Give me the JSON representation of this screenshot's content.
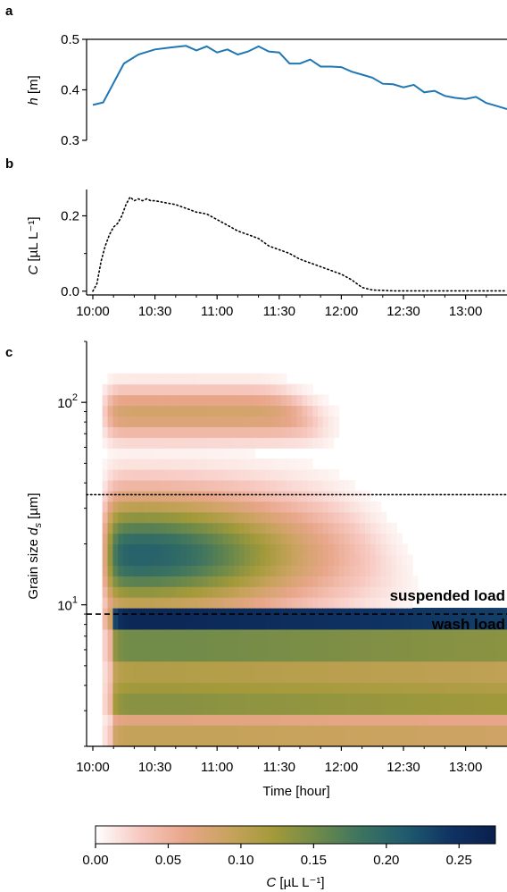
{
  "panel_letters": [
    "a",
    "b",
    "c"
  ],
  "chart_data": [
    {
      "panel": "a",
      "type": "line",
      "ylabel_italic": "h",
      "ylabel_unit": " [m]",
      "ylim": [
        0.3,
        0.5
      ],
      "yticks": [
        "0.3",
        "0.4",
        "0.5"
      ],
      "xlim": [
        0,
        200
      ],
      "x_unit": "minutes after 10:00",
      "color": "#1f77b4",
      "x": [
        0,
        5,
        15,
        22,
        30,
        38,
        45,
        50,
        55,
        60,
        65,
        70,
        75,
        80,
        85,
        90,
        95,
        100,
        105,
        110,
        115,
        120,
        125,
        130,
        135,
        140,
        145,
        150,
        155,
        160,
        165,
        170,
        175,
        180,
        185,
        190,
        195,
        200
      ],
      "y": [
        0.37,
        0.375,
        0.452,
        0.47,
        0.48,
        0.484,
        0.487,
        0.478,
        0.486,
        0.474,
        0.48,
        0.47,
        0.476,
        0.486,
        0.476,
        0.474,
        0.452,
        0.452,
        0.46,
        0.446,
        0.446,
        0.445,
        0.436,
        0.43,
        0.424,
        0.412,
        0.411,
        0.405,
        0.41,
        0.395,
        0.398,
        0.388,
        0.384,
        0.382,
        0.386,
        0.374,
        0.368,
        0.362
      ]
    },
    {
      "panel": "b",
      "type": "line",
      "ylabel_italic": "C",
      "ylabel_unit": " [µL L⁻¹]",
      "ylim": [
        -0.01,
        0.27
      ],
      "yticks": [
        "0.0",
        "0.2"
      ],
      "xlim": [
        0,
        200
      ],
      "xticks": [
        "10:00",
        "10:30",
        "11:00",
        "11:30",
        "12:00",
        "12:30",
        "13:00"
      ],
      "line_style": "dotted",
      "x": [
        0,
        2,
        4,
        6,
        8,
        10,
        12,
        14,
        16,
        18,
        20,
        22,
        24,
        26,
        28,
        30,
        35,
        40,
        45,
        50,
        55,
        60,
        65,
        70,
        75,
        80,
        85,
        90,
        95,
        100,
        105,
        110,
        115,
        120,
        125,
        130,
        135,
        140,
        145,
        150,
        155,
        160,
        170,
        180,
        190,
        200
      ],
      "y": [
        0.0,
        0.02,
        0.08,
        0.12,
        0.15,
        0.17,
        0.18,
        0.2,
        0.23,
        0.25,
        0.24,
        0.245,
        0.24,
        0.245,
        0.24,
        0.24,
        0.235,
        0.23,
        0.22,
        0.21,
        0.205,
        0.19,
        0.175,
        0.16,
        0.15,
        0.14,
        0.12,
        0.11,
        0.1,
        0.085,
        0.075,
        0.065,
        0.055,
        0.045,
        0.03,
        0.01,
        0.003,
        0.002,
        0.001,
        0.001,
        0.001,
        0.001,
        0.001,
        0.001,
        0.001,
        0.001
      ]
    },
    {
      "panel": "c",
      "type": "heatmap",
      "ylabel_text": "Grain size ",
      "ylabel_italic": "d",
      "ylabel_sub": "s",
      "ylabel_unit": " [µm]",
      "xlabel": "Time [hour]",
      "xticks": [
        "10:00",
        "10:30",
        "11:00",
        "11:30",
        "12:00",
        "12:30",
        "13:00"
      ],
      "yticks_base": "10",
      "yticks_exp": [
        "1",
        "2"
      ],
      "yscale": "log",
      "ylim": [
        2,
        200
      ],
      "xlim": [
        0,
        200
      ],
      "hlines": [
        {
          "value": 35,
          "style": "dotted"
        },
        {
          "value": 9,
          "style": "dashed"
        }
      ],
      "annotations": [
        "suspended load",
        "wash load"
      ]
    }
  ],
  "colorbar": {
    "label_italic": "C",
    "label_unit": " [µL L⁻¹]",
    "ticks": [
      "0.00",
      "0.05",
      "0.10",
      "0.15",
      "0.20",
      "0.25"
    ],
    "range": [
      0,
      0.275
    ],
    "colors": [
      "#ffffff",
      "#f7c8c0",
      "#e8a68a",
      "#c9a35e",
      "#a39a3a",
      "#6e8a4a",
      "#3b7361",
      "#1f5a6e",
      "#0f3363",
      "#0a1f4d"
    ]
  }
}
